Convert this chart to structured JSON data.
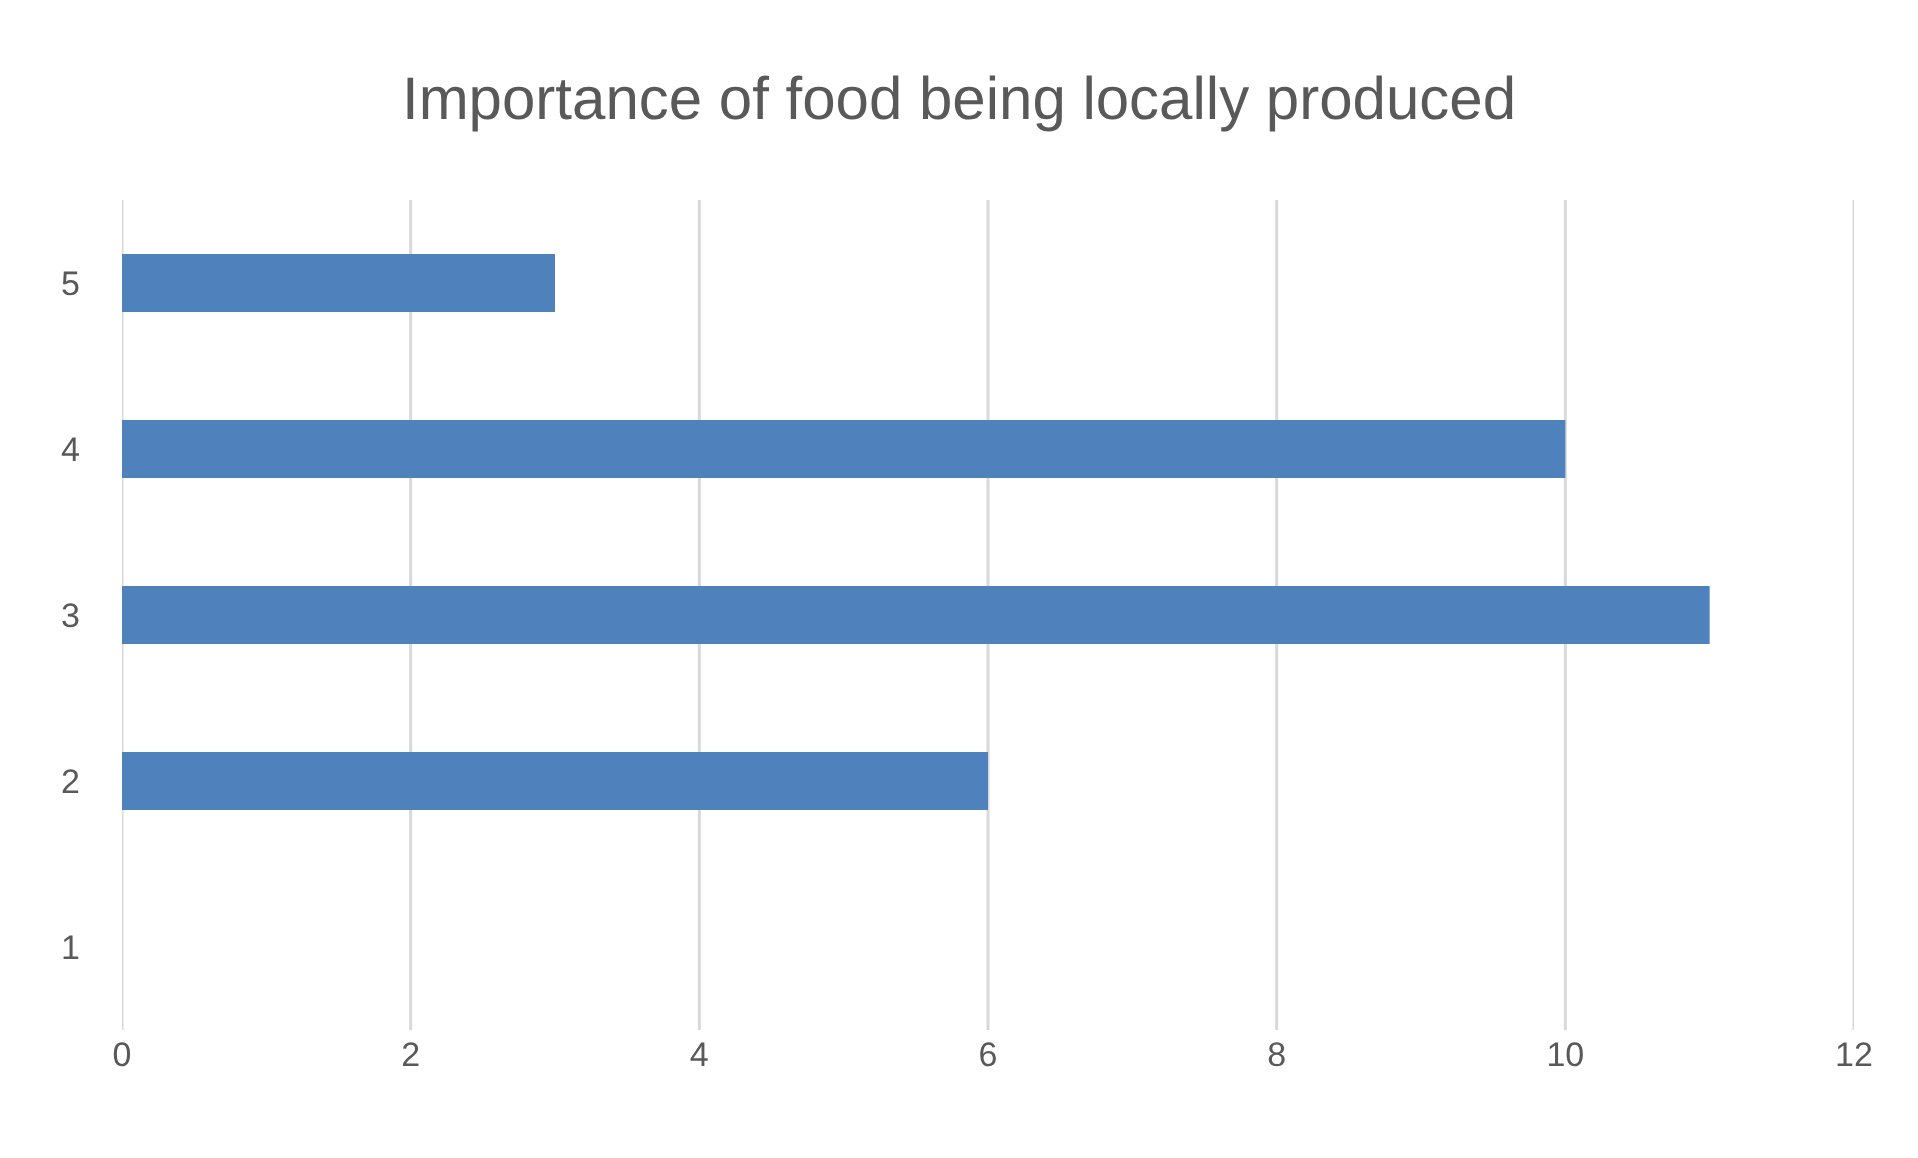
{
  "chart_data": {
    "type": "bar",
    "orientation": "horizontal",
    "title": "Importance of food being locally produced",
    "categories": [
      "5",
      "4",
      "3",
      "2",
      "1"
    ],
    "values": [
      3,
      10,
      11,
      6,
      0
    ],
    "color": "#4f81bd",
    "xlim": [
      0,
      12
    ],
    "xticks": [
      0,
      2,
      4,
      6,
      8,
      10,
      12
    ],
    "grid": "x"
  }
}
